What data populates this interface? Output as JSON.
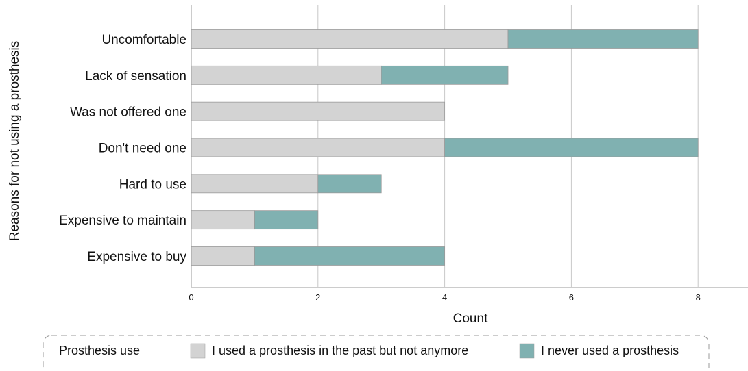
{
  "chart_data": {
    "type": "bar",
    "orientation": "horizontal",
    "stacked": true,
    "categories": [
      "Uncomfortable",
      "Lack of sensation",
      "Was not offered one",
      "Don't need one",
      "Hard to use",
      "Expensive to maintain",
      "Expensive to buy"
    ],
    "series": [
      {
        "name": "I used a prosthesis in the past but not anymore",
        "color": "#d3d3d3",
        "values": [
          5,
          3,
          4,
          4,
          2,
          1,
          1
        ]
      },
      {
        "name": "I never used a prosthesis",
        "color": "#80b1b1",
        "values": [
          3,
          2,
          0,
          4,
          1,
          1,
          3
        ]
      }
    ],
    "xlabel": "Count",
    "ylabel": "Reasons for not using a prosthesis",
    "xlim": [
      0,
      8.8
    ],
    "xticks": [
      0,
      2,
      4,
      6,
      8
    ],
    "grid": "vertical",
    "legend": {
      "title": "Prosthesis use",
      "placement": "bottom"
    }
  },
  "colors": {
    "past_use": "#d3d3d3",
    "never_used": "#80b1b1",
    "grid": "#c8c8c8",
    "bar_edge": "#9a9a9a",
    "axis": "#9a9a9a"
  }
}
